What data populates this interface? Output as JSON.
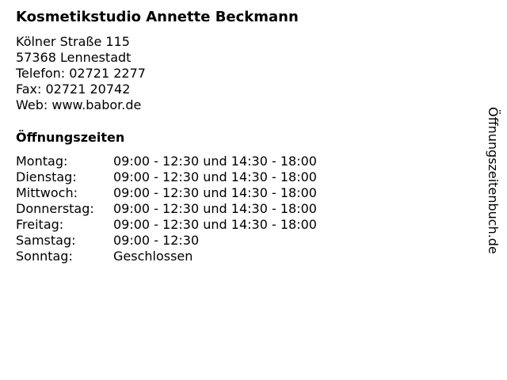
{
  "business": {
    "name": "Kosmetikstudio Annette Beckmann",
    "street": "Kölner Straße 115",
    "city": "57368 Lennestadt",
    "phone": "Telefon: 02721 2277",
    "fax": "Fax: 02721 20742",
    "web": "Web: www.babor.de"
  },
  "hours": {
    "heading": "Öffnungszeiten",
    "rows": [
      {
        "day": "Montag:",
        "time": "09:00 - 12:30 und 14:30 - 18:00"
      },
      {
        "day": "Dienstag:",
        "time": "09:00 - 12:30 und 14:30 - 18:00"
      },
      {
        "day": "Mittwoch:",
        "time": "09:00 - 12:30 und 14:30 - 18:00"
      },
      {
        "day": "Donnerstag:",
        "time": "09:00 - 12:30 und 14:30 - 18:00"
      },
      {
        "day": "Freitag:",
        "time": "09:00 - 12:30 und 14:30 - 18:00"
      },
      {
        "day": "Samstag:",
        "time": "09:00 - 12:30"
      },
      {
        "day": "Sonntag:",
        "time": "Geschlossen"
      }
    ]
  },
  "watermark": "Öffnungszeitenbuch.de"
}
